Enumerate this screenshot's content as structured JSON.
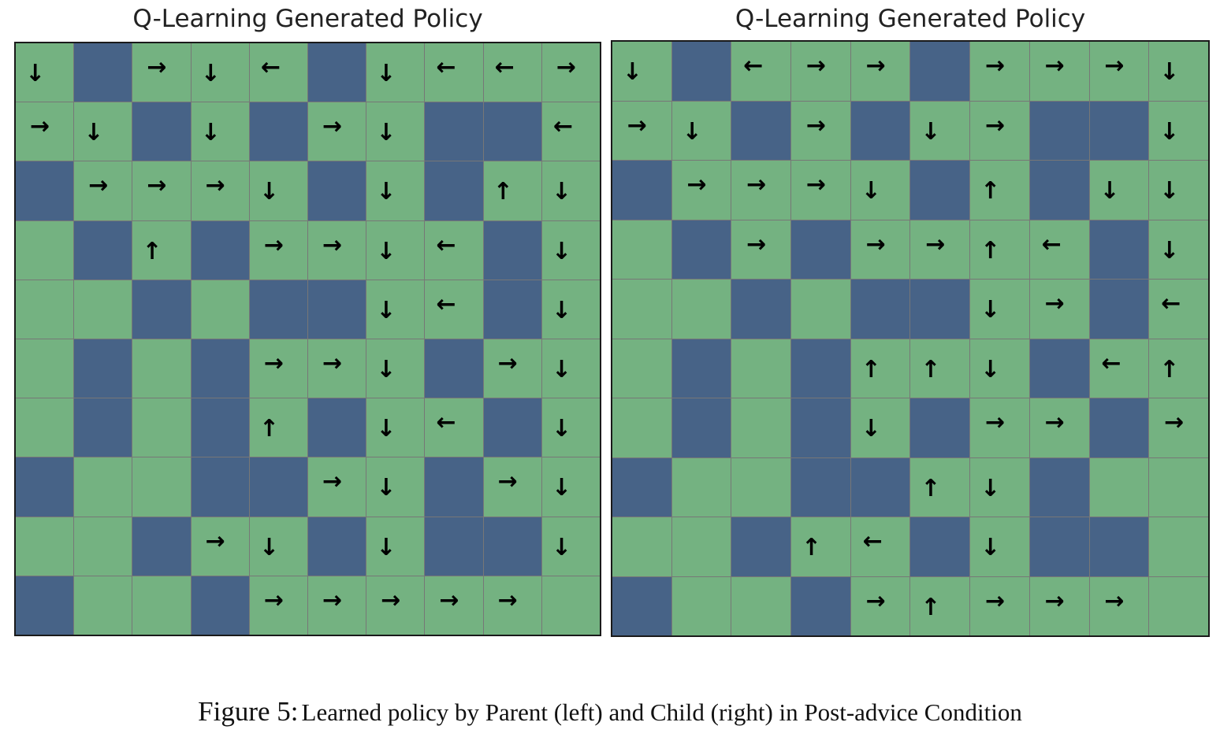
{
  "figure": {
    "panels": [
      {
        "id": "parent",
        "title": "Q-Learning Generated Policy",
        "grid": [
          "D#RDL#DLLR",
          "RD#D#RD##L",
          "#RRRD#D#UD",
          ".#U#RRDL#D",
          "..#.##DL#D",
          ".#.#RRD#RD",
          ".#.#U#DL#D",
          "#..##RD#RD",
          "..#RD#D##D",
          "#..#RRRRR."
        ]
      },
      {
        "id": "child",
        "title": "Q-Learning Generated Policy",
        "grid": [
          "D#LRR#RRRD",
          "RD#R#DR##D",
          "#RRRD#U#DD",
          ".#R#RRUL#D",
          "..#.##DR#L",
          ".#.#UUD#LU",
          ".#.#D#RR#R",
          "#..##UD#..",
          "..#UL#D##.",
          "#..#RURRR."
        ]
      }
    ],
    "legend": {
      "#": "wall",
      ".": "empty",
      "U": "up",
      "D": "down",
      "L": "left",
      "R": "right"
    },
    "colors": {
      "free": "#74b281",
      "wall": "#476387",
      "arrow": "#000000"
    },
    "caption": {
      "label": "Figure 5:",
      "text": "Learned policy by Parent (left) and Child (right) in Post-advice Condition"
    }
  }
}
